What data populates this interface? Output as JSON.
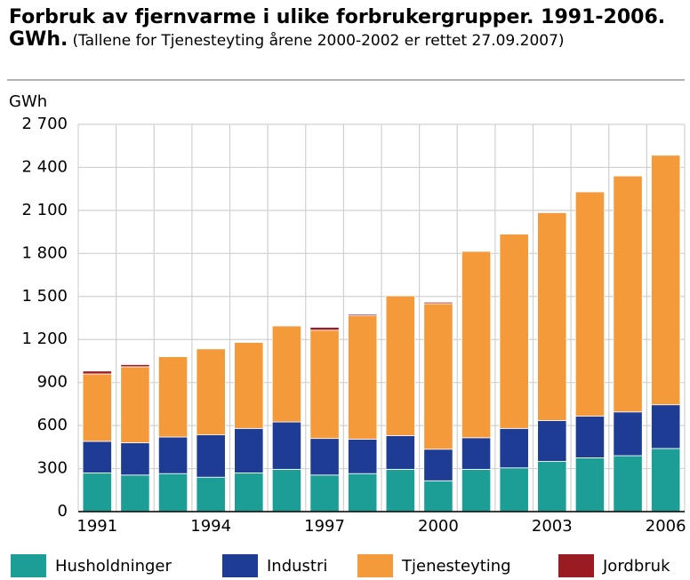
{
  "chart_data": {
    "type": "stacked_bar",
    "title": "Forbruk av fjernvarme i ulike forbrukergrupper. 1991-2006. GWh.",
    "subtitle": "(Tallene for Tjenesteyting årene 2000-2002 er rettet 27.09.2007)",
    "y_label": "GWh",
    "categories": [
      "1991",
      null,
      null,
      "1994",
      null,
      null,
      "1997",
      null,
      null,
      "2000",
      null,
      null,
      "2003",
      null,
      null,
      "2006"
    ],
    "series": [
      {
        "name": "Husholdninger",
        "color": "#1c9e96",
        "values": [
          270,
          255,
          265,
          240,
          270,
          295,
          255,
          265,
          295,
          215,
          295,
          305,
          350,
          375,
          390,
          440
        ]
      },
      {
        "name": "Industri",
        "color": "#1f3c94",
        "values": [
          220,
          225,
          255,
          295,
          310,
          330,
          255,
          240,
          235,
          220,
          220,
          275,
          285,
          290,
          305,
          305
        ]
      },
      {
        "name": "Tjenesteyting",
        "color": "#f59a3a",
        "values": [
          470,
          530,
          560,
          600,
          600,
          670,
          755,
          860,
          975,
          1015,
          1300,
          1355,
          1450,
          1565,
          1645,
          1740
        ]
      },
      {
        "name": "Jordbruk",
        "color": "#9b1b22",
        "values": [
          20,
          15,
          5,
          5,
          5,
          5,
          20,
          10,
          5,
          10,
          5,
          5,
          5,
          5,
          5,
          5
        ]
      }
    ],
    "ylim": [
      0,
      2700
    ],
    "yticks": [
      0,
      300,
      600,
      900,
      {
        "value": 1200,
        "label": "1 200"
      },
      {
        "value": 1500,
        "label": "1 500"
      },
      {
        "value": 1800,
        "label": "1 800"
      },
      {
        "value": 2100,
        "label": "2 100"
      },
      {
        "value": 2400,
        "label": "2 400"
      },
      {
        "value": 2700,
        "label": "2 700"
      }
    ],
    "grid": true
  }
}
